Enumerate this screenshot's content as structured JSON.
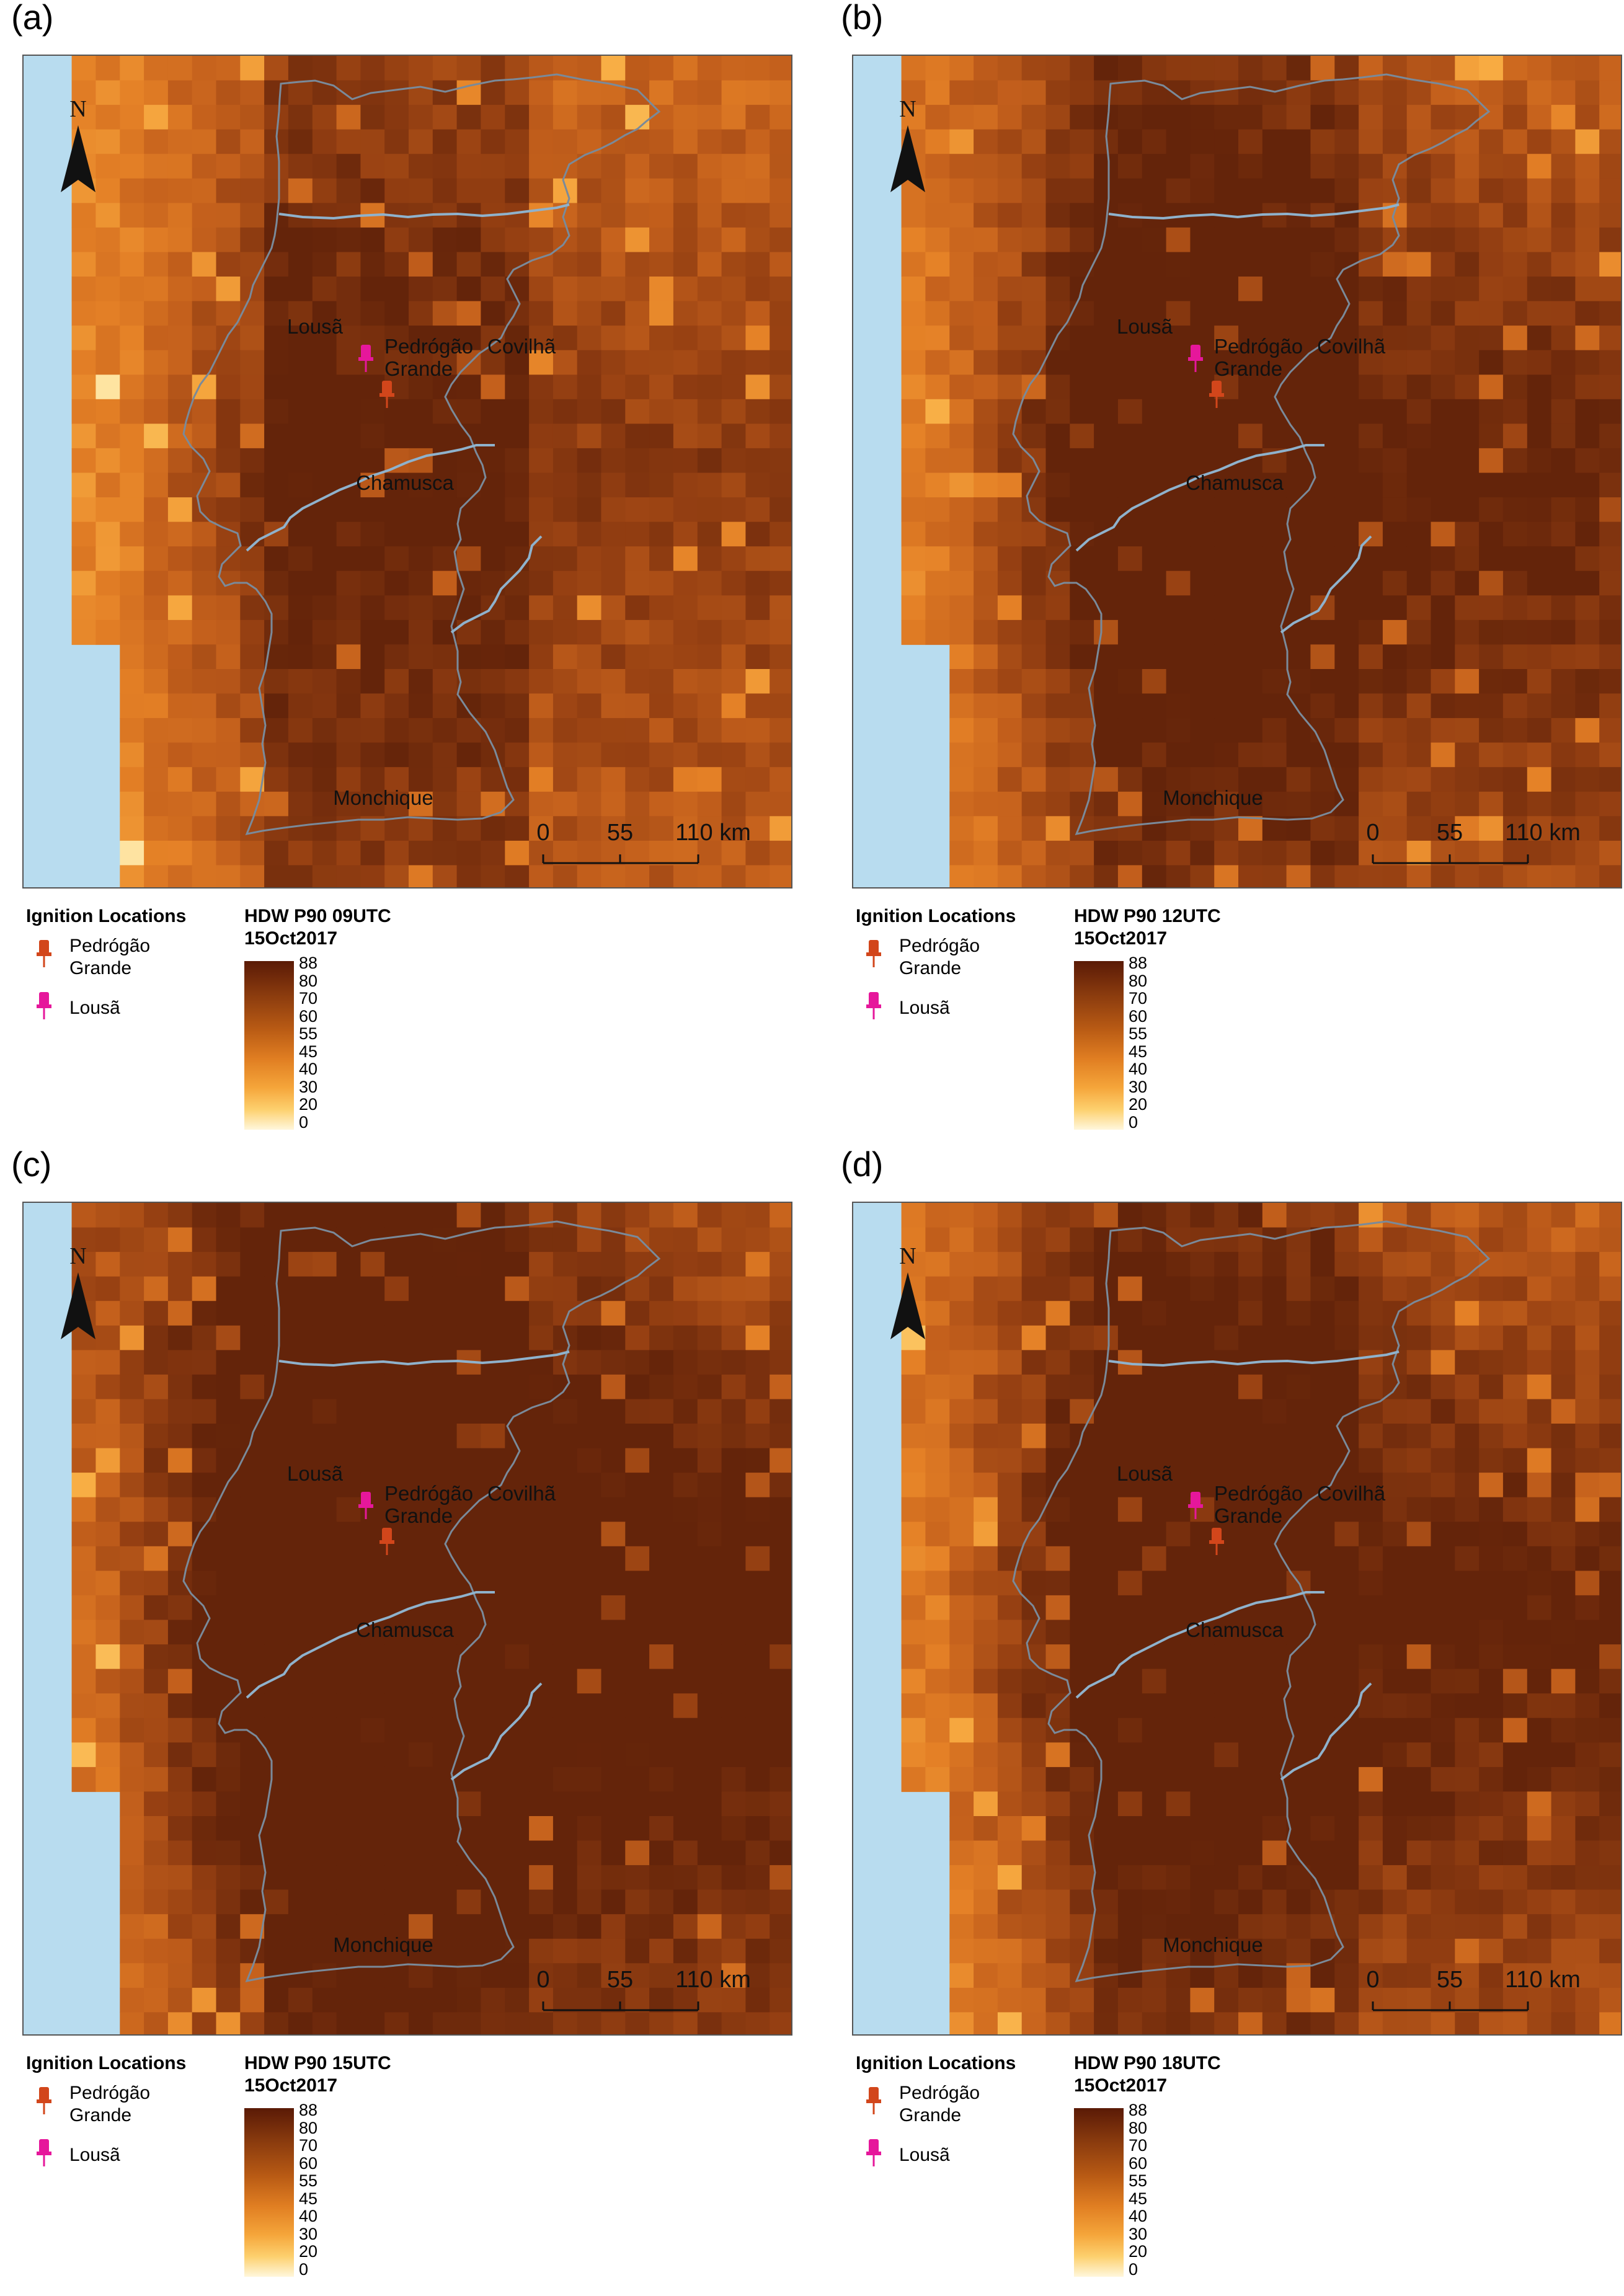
{
  "panels": [
    {
      "letter": "(a)",
      "legend_ignition_title": "Ignition Locations",
      "legend_pedrogao_line1": "Pedrógão",
      "legend_pedrogao_line2": "Grande",
      "legend_lousa": "Lousã",
      "ramp_title_line1": "HDW P90 09UTC",
      "ramp_title_line2": "15Oct2017",
      "seed": 1,
      "bias": [
        0.15,
        0.55,
        0.9,
        0.35
      ]
    },
    {
      "letter": "(b)",
      "legend_ignition_title": "Ignition Locations",
      "legend_pedrogao_line1": "Pedrógão",
      "legend_pedrogao_line2": "Grande",
      "legend_lousa": "Lousã",
      "ramp_title_line1": "HDW P90 12UTC",
      "ramp_title_line2": "15Oct2017",
      "seed": 2,
      "bias": [
        0.35,
        0.75,
        0.75,
        0.55
      ]
    },
    {
      "letter": "(c)",
      "legend_ignition_title": "Ignition Locations",
      "legend_pedrogao_line1": "Pedrógão",
      "legend_pedrogao_line2": "Grande",
      "legend_lousa": "Lousã",
      "ramp_title_line1": "HDW P90 15UTC",
      "ramp_title_line2": "15Oct2017",
      "seed": 3,
      "bias": [
        0.55,
        0.85,
        0.8,
        0.65
      ]
    },
    {
      "letter": "(d)",
      "legend_ignition_title": "Ignition Locations",
      "legend_pedrogao_line1": "Pedrógão",
      "legend_pedrogao_line2": "Grande",
      "legend_lousa": "Lousã",
      "ramp_title_line1": "HDW P90 18UTC",
      "ramp_title_line2": "15Oct2017",
      "seed": 4,
      "bias": [
        0.4,
        0.8,
        0.7,
        0.5
      ]
    }
  ],
  "map_labels": {
    "lousa": "Lousã",
    "pedrogao": "Pedrógão",
    "pedrogao_line2": "Grande",
    "covilha": "Covilhã",
    "chamusca": "Chamusca",
    "monchique": "Monchique",
    "north": "N"
  },
  "scale_bar": {
    "tick0": "0",
    "tick1": "55",
    "tick2": "110 km"
  },
  "color_ramp": {
    "labels": [
      "88",
      "80",
      "70",
      "60",
      "55",
      "45",
      "40",
      "30",
      "20",
      "0"
    ]
  },
  "colors": {
    "sea": "#b8dcef",
    "border": "#7a8a9a",
    "pedrogao_pin": "#d2461b",
    "lousa_pin": "#e6179b"
  }
}
